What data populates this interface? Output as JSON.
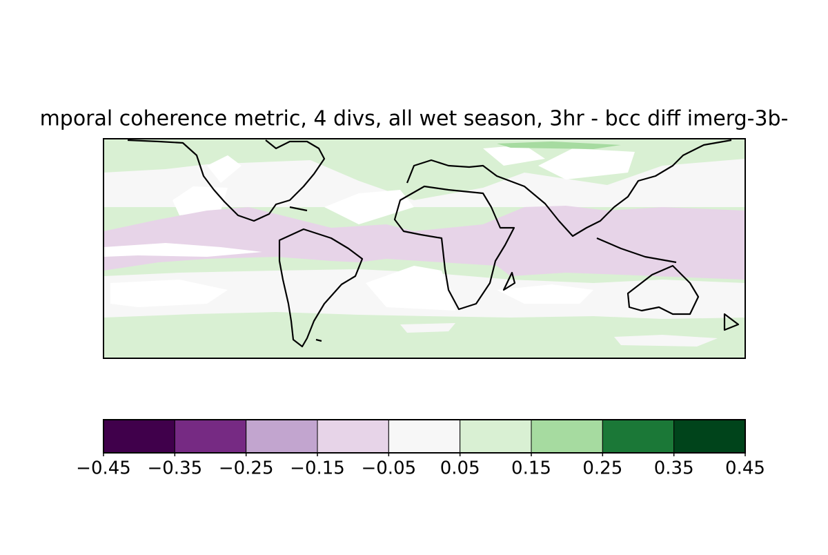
{
  "chart_data": {
    "type": "contour-map",
    "title": "mporal coherence metric, 4 divs, all wet season, 3hr - bcc diff imerg-3b-",
    "colorbar": {
      "clim": [
        {
          "value": -0.45,
          "label": "−0.45"
        },
        0.45
      ],
      "ticks": [
        {
          "value": -0.45,
          "label": "−0.45"
        },
        {
          "value": -0.35,
          "label": "−0.35"
        },
        {
          "value": -0.25,
          "label": "−0.25"
        },
        {
          "value": -0.15,
          "label": "−0.15"
        },
        {
          "value": -0.05,
          "label": "−0.05"
        },
        0.05,
        0.15,
        0.25,
        0.35,
        0.45
      ],
      "colors": [
        "#40004b",
        "#762a83",
        "#c2a5cf",
        "#e7d4e8",
        "#f7f7f7",
        "#d9f0d3",
        "#a6dba0",
        "#1b7837",
        "#00441b"
      ]
    }
  }
}
